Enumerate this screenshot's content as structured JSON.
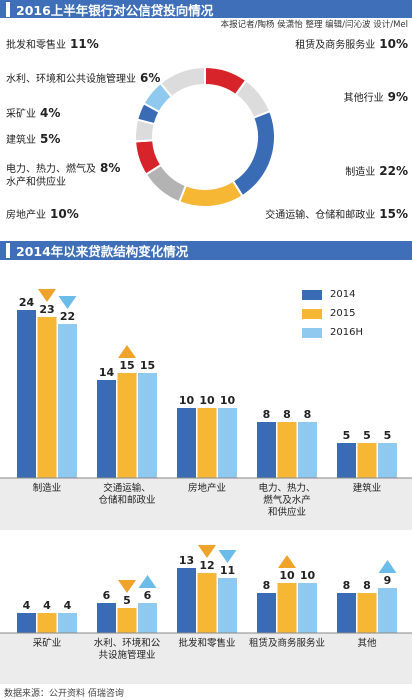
{
  "colors": {
    "banner": "#3f6fb8",
    "y2014": "#3a6cb5",
    "y2015": "#f6b735",
    "y2016": "#8fc9ef",
    "arrow_down_orange": "#f0a32a",
    "arrow_down_blue": "#6cbcea",
    "arrow_up_orange": "#f0a32a",
    "arrow_up_blue": "#6cbcea"
  },
  "section1": {
    "title": "2016上半年银行对公信贷投向情况",
    "credit": "本报记者/陶杨 侯潇怡 整理 编辑/闫沁波 设计/Mel",
    "labels": [
      {
        "name": "批发和零售业",
        "pct": "11%"
      },
      {
        "name": "水利、环境和公共设施管理业",
        "pct": "6%"
      },
      {
        "name": "采矿业",
        "pct": "4%"
      },
      {
        "name": "建筑业",
        "pct": "5%"
      },
      {
        "name": "电力、热力、燃气及",
        "name2": "水产和供应业",
        "pct": "8%"
      },
      {
        "name": "房地产业",
        "pct": "10%"
      },
      {
        "name": "租赁及商务服务业",
        "pct": "10%"
      },
      {
        "name": "其他行业",
        "pct": "9%"
      },
      {
        "name": "制造业",
        "pct": "22%"
      },
      {
        "name": "交通运输、仓储和邮政业",
        "pct": "15%"
      }
    ]
  },
  "section2": {
    "title": "2014年以来贷款结构变化情况",
    "legend": [
      "2014",
      "2015",
      "2016H"
    ]
  },
  "source": "数据来源：公开资料 佰瑞咨询",
  "chart_data": [
    {
      "type": "pie",
      "title": "2016上半年银行对公信贷投向情况",
      "slices": [
        {
          "label": "租赁及商务服务业",
          "value": 10,
          "color": "#d7242a"
        },
        {
          "label": "其他行业",
          "value": 9,
          "color": "#dcdcdc"
        },
        {
          "label": "制造业",
          "value": 22,
          "color": "#3a6cb5"
        },
        {
          "label": "交通运输、仓储和邮政业",
          "value": 15,
          "color": "#f6b735"
        },
        {
          "label": "房地产业",
          "value": 10,
          "color": "#b3b3b3"
        },
        {
          "label": "电力、热力、燃气及水产和供应业",
          "value": 8,
          "color": "#d7242a"
        },
        {
          "label": "建筑业",
          "value": 5,
          "color": "#dcdcdc"
        },
        {
          "label": "采矿业",
          "value": 4,
          "color": "#3a6cb5"
        },
        {
          "label": "水利、环境和公共设施管理业",
          "value": 6,
          "color": "#8fc9ef"
        },
        {
          "label": "批发和零售业",
          "value": 11,
          "color": "#dcdcdc"
        }
      ]
    },
    {
      "type": "bar",
      "title": "2014年以来贷款结构变化情况",
      "categories": [
        {
          "lines": [
            "制造业"
          ]
        },
        {
          "lines": [
            "交通运输、",
            "仓储和邮政业"
          ]
        },
        {
          "lines": [
            "房地产业"
          ]
        },
        {
          "lines": [
            "电力、热力、",
            "燃气及水产",
            "和供应业"
          ]
        },
        {
          "lines": [
            "建筑业"
          ]
        }
      ],
      "series": [
        {
          "name": "2014",
          "values": [
            24,
            14,
            10,
            8,
            5
          ]
        },
        {
          "name": "2015",
          "values": [
            23,
            15,
            10,
            8,
            5
          ]
        },
        {
          "name": "2016H",
          "values": [
            22,
            15,
            10,
            8,
            5
          ]
        }
      ],
      "arrows": [
        {
          "cat": 0,
          "series": 1,
          "dir": "down"
        },
        {
          "cat": 0,
          "series": 2,
          "dir": "down"
        },
        {
          "cat": 1,
          "series": 1,
          "dir": "up"
        }
      ],
      "ylim": [
        0,
        26
      ]
    },
    {
      "type": "bar",
      "categories": [
        {
          "lines": [
            "采矿业"
          ]
        },
        {
          "lines": [
            "水利、环境和公",
            "共设施管理业"
          ]
        },
        {
          "lines": [
            "批发和零售业"
          ]
        },
        {
          "lines": [
            "租赁及商务服务业"
          ]
        },
        {
          "lines": [
            "其他"
          ]
        }
      ],
      "series": [
        {
          "name": "2014",
          "values": [
            4,
            6,
            13,
            8,
            8
          ]
        },
        {
          "name": "2015",
          "values": [
            4,
            5,
            12,
            10,
            8
          ]
        },
        {
          "name": "2016H",
          "values": [
            4,
            6,
            11,
            10,
            9
          ]
        }
      ],
      "arrows": [
        {
          "cat": 1,
          "series": 1,
          "dir": "down"
        },
        {
          "cat": 1,
          "series": 2,
          "dir": "up"
        },
        {
          "cat": 2,
          "series": 1,
          "dir": "down"
        },
        {
          "cat": 2,
          "series": 2,
          "dir": "down"
        },
        {
          "cat": 3,
          "series": 1,
          "dir": "up"
        },
        {
          "cat": 4,
          "series": 2,
          "dir": "up"
        }
      ],
      "ylim": [
        0,
        14
      ]
    }
  ]
}
